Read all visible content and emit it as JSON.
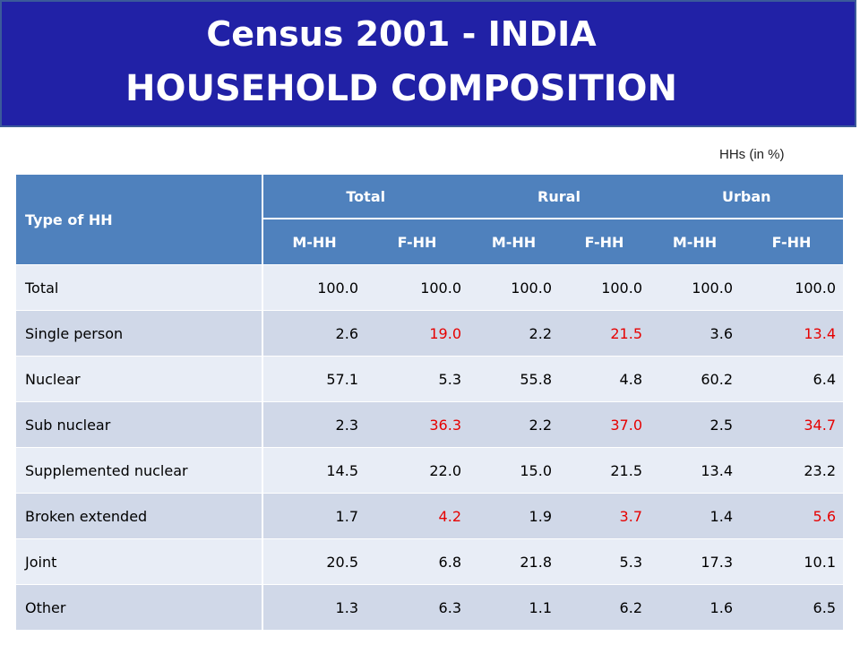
{
  "header": {
    "title_line1": "Census 2001 - INDIA",
    "title_line2": "HOUSEHOLD COMPOSITION"
  },
  "unit_note": "HHs (in %)",
  "table": {
    "type_header": "Type  of HH",
    "groups": [
      "Total",
      "Rural",
      "Urban"
    ],
    "subheaders": [
      "M-HH",
      "F-HH",
      "M-HH",
      "F-HH",
      "M-HH",
      "F-HH"
    ],
    "rows": [
      {
        "label": "Total",
        "values": [
          "100.0",
          "100.0",
          "100.0",
          "100.0",
          "100.0",
          "100.0"
        ],
        "highlight_fhh": false
      },
      {
        "label": "Single person",
        "values": [
          "2.6",
          "19.0",
          "2.2",
          "21.5",
          "3.6",
          "13.4"
        ],
        "highlight_fhh": true
      },
      {
        "label": "Nuclear",
        "values": [
          "57.1",
          "5.3",
          "55.8",
          "4.8",
          "60.2",
          "6.4"
        ],
        "highlight_fhh": false
      },
      {
        "label": "Sub nuclear",
        "values": [
          "2.3",
          "36.3",
          "2.2",
          "37.0",
          "2.5",
          "34.7"
        ],
        "highlight_fhh": true
      },
      {
        "label": "Supplemented nuclear",
        "values": [
          "14.5",
          "22.0",
          "15.0",
          "21.5",
          "13.4",
          "23.2"
        ],
        "highlight_fhh": false
      },
      {
        "label": "Broken extended",
        "values": [
          "1.7",
          "4.2",
          "1.9",
          "3.7",
          "1.4",
          "5.6"
        ],
        "highlight_fhh": true
      },
      {
        "label": "Joint",
        "values": [
          "20.5",
          "6.8",
          "21.8",
          "5.3",
          "17.3",
          "10.1"
        ],
        "highlight_fhh": false
      },
      {
        "label": "Other",
        "values": [
          "1.3",
          "6.3",
          "1.1",
          "6.2",
          "1.6",
          "6.5"
        ],
        "highlight_fhh": false
      }
    ]
  },
  "colors": {
    "title_bg": "#2121a6",
    "header_bg": "#4f81bd",
    "row_light": "#e8edf6",
    "row_dark": "#d0d8e8",
    "highlight_text": "#e60000"
  }
}
